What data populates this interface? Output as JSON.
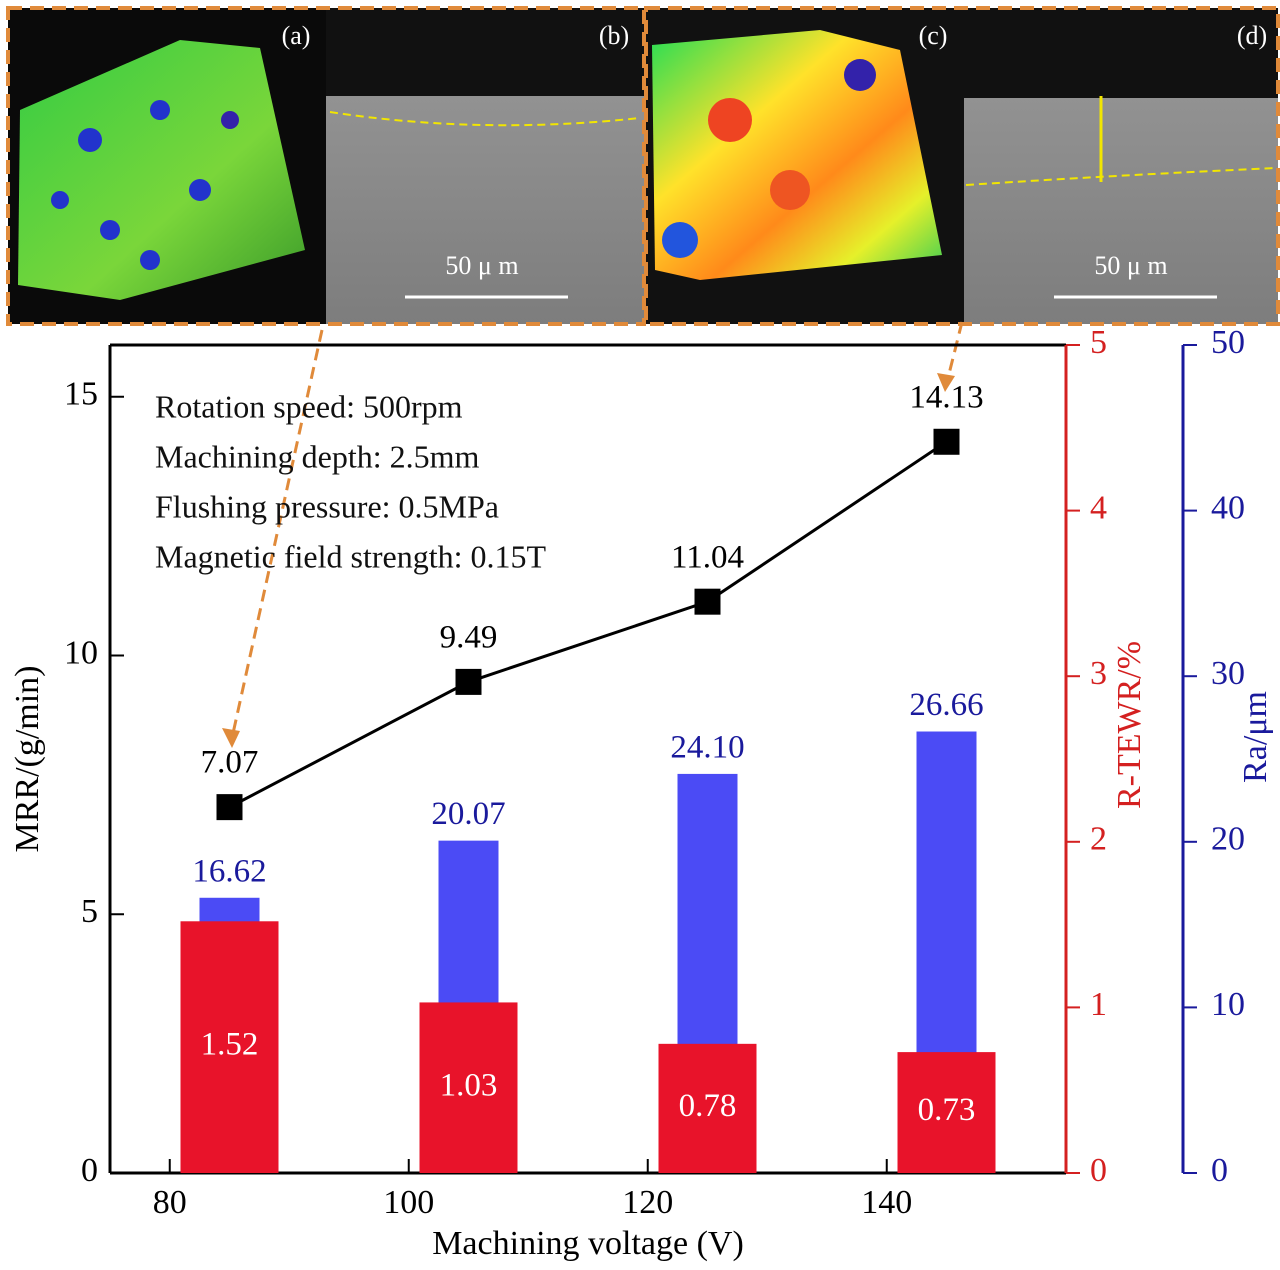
{
  "figure_panels": [
    {
      "label": "(a)"
    },
    {
      "label": "(b)",
      "scale": "50 μ m"
    },
    {
      "label": "(c)"
    },
    {
      "label": "(d)",
      "scale": "50 μ m"
    }
  ],
  "chart_data": {
    "type": "combo",
    "x_label": "Machining voltage (V)",
    "y_label": "MRR/(g/min)",
    "y2_label": "R-TEWR/%",
    "y3_label": "Ra/μm",
    "annotations": [
      "Rotation speed: 500rpm",
      "Machining depth: 2.5mm",
      "Flushing pressure: 0.5MPa",
      "Magnetic field strength: 0.15T"
    ],
    "x": [
      85,
      105,
      125,
      145
    ],
    "xlim": [
      75,
      155
    ],
    "xticks": [
      80,
      100,
      120,
      140
    ],
    "ylim": [
      0,
      16
    ],
    "yticks": [
      0,
      5,
      10,
      15
    ],
    "y2lim": [
      0,
      5
    ],
    "y2ticks": [
      0,
      1,
      2,
      3,
      4,
      5
    ],
    "y3lim": [
      0,
      50
    ],
    "y3ticks": [
      0,
      10,
      20,
      30,
      40,
      50
    ],
    "y2_color": "#d42020",
    "y3_color": "#1a1a9c",
    "series": [
      {
        "type": "bar",
        "axis": "y3",
        "color": "#4b4bf5",
        "label_color": "#1a1a9c",
        "values": [
          16.62,
          20.07,
          24.1,
          26.66
        ],
        "value_labels": [
          "16.62",
          "20.07",
          "24.10",
          "26.66"
        ]
      },
      {
        "type": "bar",
        "axis": "y2",
        "color": "#e8132a",
        "label_color": "#ffffff",
        "values": [
          1.52,
          1.03,
          0.78,
          0.73
        ],
        "value_labels": [
          "1.52",
          "1.03",
          "0.78",
          "0.73"
        ]
      },
      {
        "type": "line",
        "axis": "y",
        "color": "#000000",
        "label_color": "#000000",
        "values": [
          7.07,
          9.49,
          11.04,
          14.13
        ],
        "value_labels": [
          "7.07",
          "9.49",
          "11.04",
          "14.13"
        ]
      }
    ]
  }
}
